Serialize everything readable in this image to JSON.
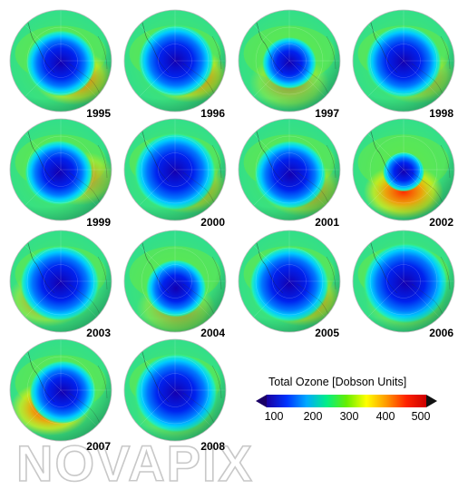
{
  "panels": [
    {
      "year": "1995",
      "hole": 0.92,
      "dx": 0.0,
      "dy": 0.05,
      "ridge": "bottom-right",
      "ridgeStrength": 0.85
    },
    {
      "year": "1996",
      "hole": 1.0,
      "dx": 0.02,
      "dy": 0.0,
      "ridge": "bottom-right",
      "ridgeStrength": 0.9
    },
    {
      "year": "1997",
      "hole": 0.72,
      "dx": 0.0,
      "dy": 0.04,
      "ridge": "bottom",
      "ridgeStrength": 0.45
    },
    {
      "year": "1998",
      "hole": 1.0,
      "dx": 0.0,
      "dy": 0.02,
      "ridge": "bottom-right",
      "ridgeStrength": 0.55
    },
    {
      "year": "1999",
      "hole": 0.9,
      "dx": -0.04,
      "dy": 0.06,
      "ridge": "right",
      "ridgeStrength": 0.6
    },
    {
      "year": "2000",
      "hole": 1.08,
      "dx": 0.0,
      "dy": 0.04,
      "ridge": "bottom-right",
      "ridgeStrength": 0.7
    },
    {
      "year": "2001",
      "hole": 0.95,
      "dx": 0.02,
      "dy": 0.1,
      "ridge": "bottom-right",
      "ridgeStrength": 0.6
    },
    {
      "year": "2002",
      "hole": 0.55,
      "dx": 0.0,
      "dy": 0.04,
      "ridge": "bottom",
      "ridgeStrength": 1.0
    },
    {
      "year": "2003",
      "hole": 1.05,
      "dx": -0.02,
      "dy": 0.04,
      "ridge": "bottom-left",
      "ridgeStrength": 0.6
    },
    {
      "year": "2004",
      "hole": 0.8,
      "dx": 0.02,
      "dy": 0.14,
      "ridge": "bottom",
      "ridgeStrength": 0.45
    },
    {
      "year": "2005",
      "hole": 1.05,
      "dx": 0.0,
      "dy": 0.06,
      "ridge": "bottom-right",
      "ridgeStrength": 0.8
    },
    {
      "year": "2006",
      "hole": 1.12,
      "dx": 0.04,
      "dy": 0.04,
      "ridge": "bottom",
      "ridgeStrength": 0.3
    },
    {
      "year": "2007",
      "hole": 0.88,
      "dx": 0.04,
      "dy": 0.04,
      "ridge": "bottom-left",
      "ridgeStrength": 1.0
    },
    {
      "year": "2008",
      "hole": 1.1,
      "dx": 0.02,
      "dy": 0.06,
      "ridge": "bottom",
      "ridgeStrength": 0.25
    }
  ],
  "legend": {
    "title": "Total Ozone [Dobson Units]",
    "ticks": [
      "100",
      "200",
      "300",
      "400",
      "500"
    ],
    "colors": [
      "#1a00a0",
      "#0033ff",
      "#00aaff",
      "#00ee88",
      "#66ee00",
      "#ffff00",
      "#ff9900",
      "#ff2200",
      "#cc0000"
    ]
  },
  "watermark": "NOVAPIX"
}
